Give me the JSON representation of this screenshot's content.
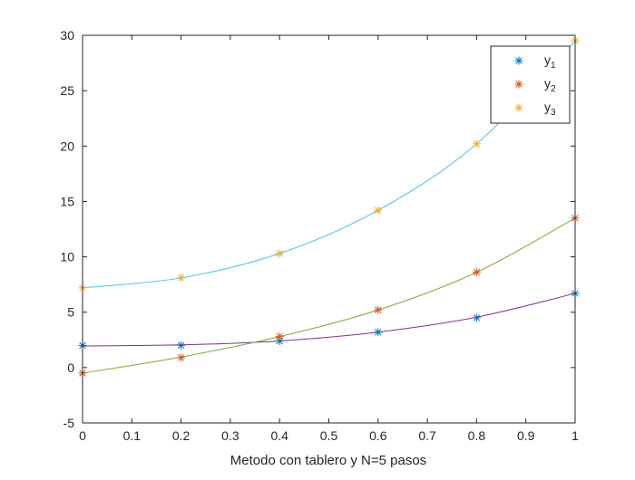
{
  "chart_data": {
    "type": "line",
    "xlabel": "Metodo con tablero y N=5 pasos",
    "ylabel": "",
    "xlim": [
      0,
      1
    ],
    "ylim": [
      -5,
      30
    ],
    "xticks": [
      0,
      0.1,
      0.2,
      0.3,
      0.4,
      0.5,
      0.6,
      0.7,
      0.8,
      0.9,
      1
    ],
    "yticks": [
      -5,
      0,
      5,
      10,
      15,
      20,
      25,
      30
    ],
    "xtick_labels": [
      "0",
      "0.1",
      "0.2",
      "0.3",
      "0.4",
      "0.5",
      "0.6",
      "0.7",
      "0.8",
      "0.9",
      "1"
    ],
    "ytick_labels": [
      "-5",
      "0",
      "5",
      "10",
      "15",
      "20",
      "25",
      "30"
    ],
    "grid": false,
    "legend_position": "top-right",
    "marker_series": [
      {
        "name": "y",
        "subscript": "1",
        "color": "#0072BD",
        "x": [
          0,
          0.2,
          0.4,
          0.6,
          0.8,
          1
        ],
        "y": [
          2.0,
          2.0,
          2.4,
          3.2,
          4.5,
          6.7
        ]
      },
      {
        "name": "y",
        "subscript": "2",
        "color": "#D95319",
        "x": [
          0,
          0.2,
          0.4,
          0.6,
          0.8,
          1
        ],
        "y": [
          -0.5,
          0.9,
          2.8,
          5.2,
          8.6,
          13.5
        ]
      },
      {
        "name": "y",
        "subscript": "3",
        "color": "#EDB120",
        "x": [
          0,
          0.2,
          0.4,
          0.6,
          0.8,
          1
        ],
        "y": [
          7.2,
          8.1,
          10.3,
          14.2,
          20.2,
          29.5
        ]
      }
    ],
    "curves": [
      {
        "color": "#7E2F8E",
        "x": [
          0,
          0.2,
          0.4,
          0.6,
          0.8,
          1
        ],
        "y": [
          1.95,
          2.05,
          2.4,
          3.2,
          4.55,
          6.7
        ]
      },
      {
        "color": "#77AC30",
        "x": [
          0,
          0.2,
          0.4,
          0.6,
          0.8,
          1
        ],
        "y": [
          -0.5,
          0.95,
          2.8,
          5.2,
          8.6,
          13.5
        ]
      },
      {
        "color": "#4DBEEE",
        "x": [
          0,
          0.2,
          0.4,
          0.6,
          0.8,
          1
        ],
        "y": [
          7.2,
          8.1,
          10.3,
          14.2,
          20.2,
          29.5
        ]
      }
    ]
  }
}
